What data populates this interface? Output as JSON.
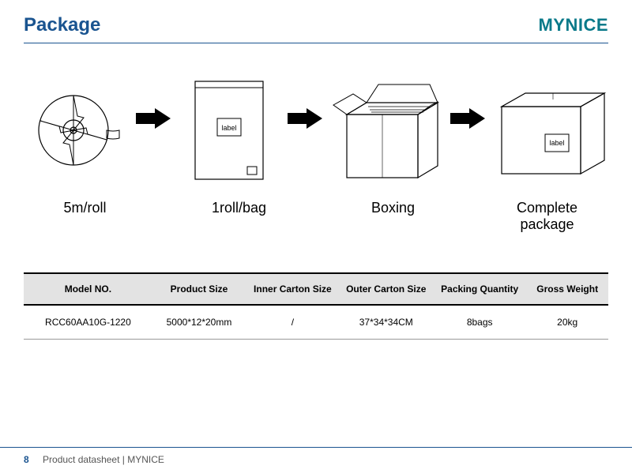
{
  "header": {
    "title": "Package",
    "brand": "MYNICE"
  },
  "stages": {
    "s1": {
      "caption": "5m/roll"
    },
    "s2": {
      "caption": "1roll/bag",
      "label_text": "label"
    },
    "s3": {
      "caption": "Boxing"
    },
    "s4": {
      "caption": "Complete package",
      "label_text": "label"
    }
  },
  "table": {
    "columns": [
      "Model NO.",
      "Product Size",
      "Inner Carton Size",
      "Outer Carton Size",
      "Packing Quantity",
      "Gross Weight"
    ],
    "col_widths": [
      "22%",
      "16%",
      "16%",
      "16%",
      "16%",
      "14%"
    ],
    "rows": [
      [
        "RCC60AA10G-1220",
        "5000*12*20mm",
        "/",
        "37*34*34CM",
        "8bags",
        "20kg"
      ]
    ]
  },
  "footer": {
    "page_number": "8",
    "text": "Product datasheet | MYNICE"
  },
  "colors": {
    "brand_title": "#1a5490",
    "brand_logo": "#0a7a8a",
    "thead_bg": "#e3e3e3",
    "line_dark": "#000000",
    "line_light": "#999999",
    "arrow_fill": "#000000"
  },
  "typography": {
    "title_fontsize": 24,
    "brand_fontsize": 22,
    "caption_fontsize": 18,
    "table_fontsize": 12,
    "footer_fontsize": 12
  }
}
